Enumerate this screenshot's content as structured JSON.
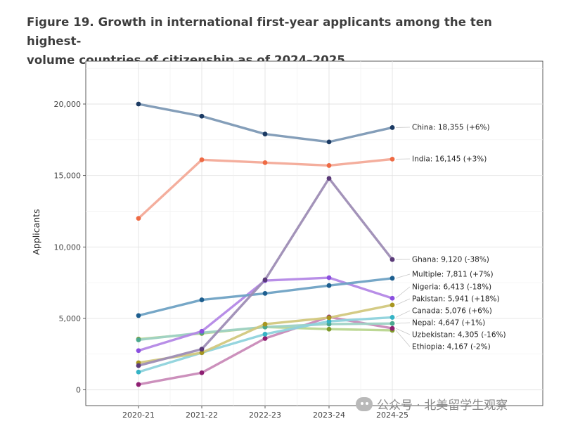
{
  "chart_data": {
    "type": "line",
    "title": "Figure 19. Growth in international first-year applicants among the ten highest-volume countries of citizenship as of 2024–2025",
    "title_lines": [
      "Figure 19. Growth in international first-year applicants among the ten highest-",
      "volume countries of citizenship as of 2024–2025"
    ],
    "xlabel": "",
    "ylabel": "Applicants",
    "categories": [
      "2020-21",
      "2021-22",
      "2022-23",
      "2023-24",
      "2024-25"
    ],
    "ylim": [
      -1100,
      23000
    ],
    "yticks": [
      0,
      5000,
      10000,
      15000,
      20000
    ],
    "ytick_labels": [
      "0",
      "5,000",
      "10,000",
      "15,000",
      "20,000"
    ],
    "grid": true,
    "series": [
      {
        "name": "China",
        "label": "China: 18,355 (+6%)",
        "color": "#7d99b5",
        "marker": "#1b3a63",
        "values": [
          20000,
          19150,
          17900,
          17350,
          18355
        ]
      },
      {
        "name": "India",
        "label": "India: 16,145 (+3%)",
        "color": "#f3aa98",
        "marker": "#ee6a44",
        "values": [
          12000,
          16100,
          15900,
          15700,
          16145
        ]
      },
      {
        "name": "Ghana",
        "label": "Ghana: 9,120 (-38%)",
        "color": "#9e8db5",
        "marker": "#5a3a78",
        "values": [
          1700,
          2850,
          7700,
          14800,
          9120
        ]
      },
      {
        "name": "Multiple",
        "label": "Multiple: 7,811 (+7%)",
        "color": "#6fa2c4",
        "marker": "#1d5e8f",
        "values": [
          5200,
          6300,
          6750,
          7300,
          7811
        ]
      },
      {
        "name": "Nigeria",
        "label": "Nigeria: 6,413 (-18%)",
        "color": "#b488e6",
        "marker": "#8a4fe0",
        "values": [
          2750,
          4100,
          7650,
          7850,
          6413
        ]
      },
      {
        "name": "Pakistan",
        "label": "Pakistan: 5,941 (+18%)",
        "color": "#d2c87e",
        "marker": "#a89620",
        "values": [
          1900,
          2600,
          4600,
          5050,
          5941
        ]
      },
      {
        "name": "Canada",
        "label": "Canada: 5,076 (+6%)",
        "color": "#8fd3dc",
        "marker": "#35b3c5",
        "values": [
          1250,
          2600,
          3900,
          4800,
          5076
        ]
      },
      {
        "name": "Nepal",
        "label": "Nepal: 4,647 (+1%)",
        "color": "#9ed2c4",
        "marker": "#4aa88f",
        "values": [
          3500,
          4000,
          4400,
          4600,
          4647
        ]
      },
      {
        "name": "Uzbekistan",
        "label": "Uzbekistan: 4,305 (-16%)",
        "color": "#c98ab8",
        "marker": "#8e1f72",
        "values": [
          380,
          1200,
          3600,
          5100,
          4305
        ]
      },
      {
        "name": "Ethiopia",
        "label": "Ethiopia: 4,167 (-2%)",
        "color": "#b9d68f",
        "marker": "#7f9a2a",
        "values": [
          3550,
          3950,
          4400,
          4250,
          4167
        ]
      }
    ],
    "label_y": [
      181,
      226,
      369,
      390,
      408,
      425,
      442,
      459,
      476,
      493
    ]
  },
  "watermark": {
    "text": "公众号 · 北美留学生观察",
    "icon": "wechat-icon"
  }
}
